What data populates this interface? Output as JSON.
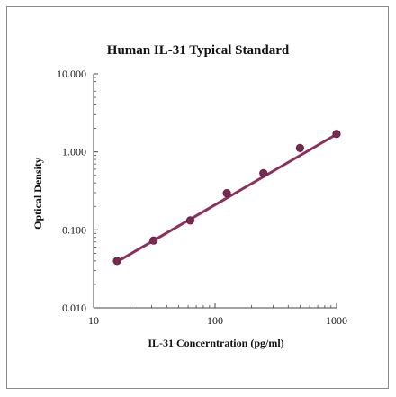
{
  "chart_data": {
    "type": "scatter",
    "title": "Human IL-31 Typical Standard",
    "xlabel": "IL-31 Concerntration (pg/ml)",
    "ylabel": "Optical Density",
    "x_scale": "log",
    "y_scale": "log",
    "xlim": [
      10,
      1000
    ],
    "ylim": [
      0.01,
      10
    ],
    "x_ticks": [
      {
        "value": 10,
        "label": "10"
      },
      {
        "value": 100,
        "label": "100"
      },
      {
        "value": 1000,
        "label": "1000"
      }
    ],
    "y_ticks": [
      {
        "value": 0.01,
        "label": "0.010"
      },
      {
        "value": 0.1,
        "label": "0.100"
      },
      {
        "value": 1,
        "label": "1.000"
      },
      {
        "value": 10,
        "label": "10.000"
      }
    ],
    "grid": false,
    "series": [
      {
        "x": [
          15.6,
          31.2,
          62.5,
          125,
          250,
          500,
          1000
        ],
        "y": [
          0.04,
          0.073,
          0.132,
          0.295,
          0.533,
          1.12,
          1.7
        ]
      }
    ],
    "trendline": {
      "x": [
        15.6,
        1000
      ],
      "y": [
        0.039,
        1.68
      ]
    },
    "colors": {
      "point": "#7a2a52",
      "line": "#8b2f5c",
      "axis": "#444444"
    }
  }
}
